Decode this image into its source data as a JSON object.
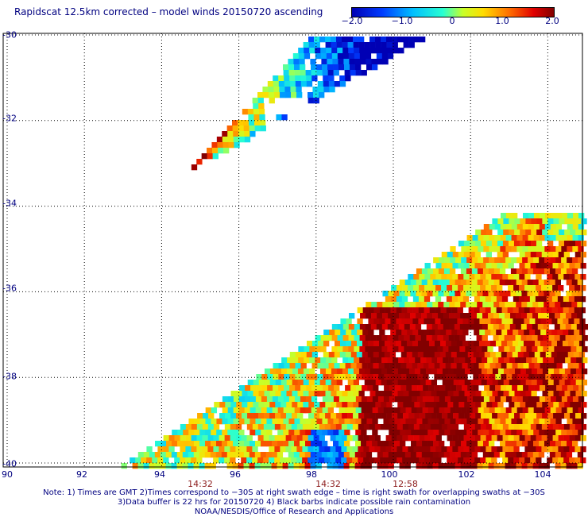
{
  "title": "Rapidscat 12.5km corrected – model winds 20150720 ascending",
  "colorbar": {
    "labels": [
      "−2.0",
      "−1.0",
      "0",
      "1.0",
      "2.0"
    ],
    "values": [
      -2.0,
      -1.0,
      0,
      1.0,
      2.0
    ],
    "range": [
      -2.0,
      2.0
    ]
  },
  "axes": {
    "latitude_labels": [
      "-30",
      "-32",
      "-34",
      "-36",
      "-38",
      "-40"
    ],
    "latitude_values": [
      -30,
      -32,
      -34,
      -36,
      -38,
      -40
    ],
    "longitude_labels": [
      "90",
      "92",
      "94",
      "96",
      "98",
      "100",
      "102",
      "104"
    ],
    "longitude_values": [
      90,
      92,
      94,
      96,
      98,
      100,
      102,
      104
    ],
    "grid": "dotted"
  },
  "swath_times": [
    {
      "label": "14:32",
      "lon": 95.0
    },
    {
      "label": "14:32",
      "lon": 98.5
    },
    {
      "label": "12:58",
      "lon": 100.5
    }
  ],
  "notes": [
    "Note: 1) Times are GMT 2)Times correspond to −30S at right swath edge – time is right swath for overlapping swaths at −30S",
    "3)Data buffer is 22 hrs for 20150720 4) Black barbs indicate possible rain contamination",
    "NOAA/NESDIS/Office of Research and Applications"
  ]
}
